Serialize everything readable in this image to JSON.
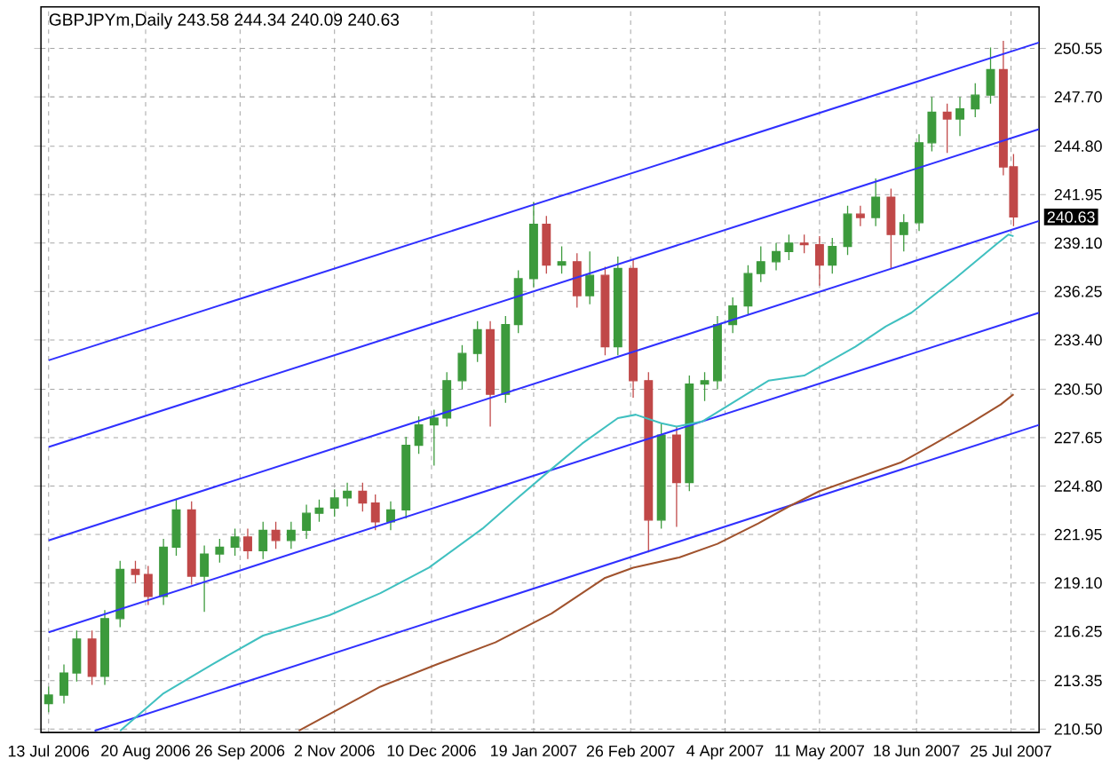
{
  "chart_data": {
    "type": "candlestick",
    "title": "GBPJPYm,Daily  243.58 244.34 240.09 240.63",
    "xlim": [
      "2006-07-10",
      "2007-08-05"
    ],
    "ylim": [
      210.3,
      253.0
    ],
    "xticks": [
      {
        "value": "2006-07-13",
        "label": "13 Jul 2006"
      },
      {
        "value": "2006-08-20",
        "label": "20 Aug 2006"
      },
      {
        "value": "2006-09-26",
        "label": "26 Sep 2006"
      },
      {
        "value": "2006-11-02",
        "label": "2 Nov 2006"
      },
      {
        "value": "2006-12-10",
        "label": "10 Dec 2006"
      },
      {
        "value": "2007-01-19",
        "label": "19 Jan 2007"
      },
      {
        "value": "2007-02-26",
        "label": "26 Feb 2007"
      },
      {
        "value": "2007-04-04",
        "label": "4 Apr 2007"
      },
      {
        "value": "2007-05-11",
        "label": "11 May 2007"
      },
      {
        "value": "2007-06-18",
        "label": "18 Jun 2007"
      },
      {
        "value": "2007-07-25",
        "label": "25 Jul 2007"
      }
    ],
    "yticks": [
      250.55,
      {
        "value": 247.7,
        "label": "247.70"
      },
      {
        "value": 244.8,
        "label": "244.80"
      },
      241.95,
      {
        "value": 239.1,
        "label": "239.10"
      },
      236.25,
      {
        "value": 233.4,
        "label": "233.40"
      },
      {
        "value": 230.5,
        "label": "230.50"
      },
      227.65,
      {
        "value": 224.8,
        "label": "224.80"
      },
      221.95,
      {
        "value": 219.1,
        "label": "219.10"
      },
      216.25,
      213.35,
      {
        "value": 210.5,
        "label": "210.50"
      }
    ],
    "grid": true,
    "annotations": [
      {
        "text": "240.63",
        "y": 240.63
      }
    ],
    "series": [
      {
        "x": [
          "2006-07-13",
          "2006-07-19",
          "2006-07-24",
          "2006-07-30",
          "2006-08-04",
          "2006-08-10",
          "2006-08-16",
          "2006-08-21",
          "2006-08-27",
          "2006-09-01",
          "2006-09-07",
          "2006-09-12",
          "2006-09-18",
          "2006-09-24",
          "2006-09-29",
          "2006-10-05",
          "2006-10-10",
          "2006-10-16",
          "2006-10-22",
          "2006-10-27",
          "2006-11-02",
          "2006-11-07",
          "2006-11-13",
          "2006-11-18",
          "2006-11-24",
          "2006-11-30",
          "2006-12-05",
          "2006-12-11",
          "2006-12-16",
          "2006-12-22",
          "2006-12-28",
          "2007-01-02",
          "2007-01-08",
          "2007-01-13",
          "2007-01-19",
          "2007-01-24",
          "2007-01-30",
          "2007-02-05",
          "2007-02-10",
          "2007-02-16",
          "2007-02-21",
          "2007-02-27",
          "2007-03-05",
          "2007-03-10",
          "2007-03-16",
          "2007-03-21",
          "2007-03-27",
          "2007-04-01",
          "2007-04-07",
          "2007-04-13",
          "2007-04-18",
          "2007-04-24",
          "2007-04-29",
          "2007-05-05",
          "2007-05-11",
          "2007-05-16",
          "2007-05-22",
          "2007-05-27",
          "2007-06-02",
          "2007-06-08",
          "2007-06-13",
          "2007-06-19",
          "2007-06-24",
          "2007-06-30",
          "2007-07-05",
          "2007-07-11",
          "2007-07-17",
          "2007-07-22",
          "2007-07-26"
        ],
        "ohlc": [
          [
            212.0,
            213.0,
            211.5,
            212.5
          ],
          [
            212.5,
            214.3,
            212.0,
            213.8
          ],
          [
            213.8,
            216.3,
            213.3,
            215.8
          ],
          [
            215.8,
            216.3,
            213.1,
            213.6
          ],
          [
            213.6,
            217.5,
            213.1,
            217.0
          ],
          [
            217.0,
            220.4,
            216.5,
            219.9
          ],
          [
            219.9,
            220.4,
            219.1,
            219.6
          ],
          [
            219.6,
            220.1,
            217.8,
            218.3
          ],
          [
            218.3,
            221.7,
            217.8,
            221.2
          ],
          [
            221.2,
            224.0,
            220.7,
            223.4
          ],
          [
            223.4,
            223.9,
            219.0,
            219.5
          ],
          [
            219.5,
            221.3,
            217.4,
            220.8
          ],
          [
            220.8,
            221.7,
            220.3,
            221.2
          ],
          [
            221.2,
            222.3,
            220.7,
            221.8
          ],
          [
            221.8,
            222.3,
            220.5,
            221.0
          ],
          [
            221.0,
            222.7,
            220.5,
            222.2
          ],
          [
            222.2,
            222.7,
            221.1,
            221.6
          ],
          [
            221.6,
            222.7,
            221.1,
            222.2
          ],
          [
            222.2,
            223.7,
            221.7,
            223.2
          ],
          [
            223.2,
            224.0,
            222.7,
            223.5
          ],
          [
            223.5,
            224.6,
            223.0,
            224.1
          ],
          [
            224.1,
            225.0,
            223.6,
            224.5
          ],
          [
            224.5,
            225.0,
            223.3,
            223.8
          ],
          [
            223.8,
            224.3,
            222.2,
            222.7
          ],
          [
            222.7,
            223.9,
            222.2,
            223.4
          ],
          [
            223.4,
            227.7,
            222.9,
            227.2
          ],
          [
            227.2,
            228.9,
            226.7,
            228.4
          ],
          [
            228.4,
            229.3,
            226.0,
            228.8
          ],
          [
            228.8,
            231.5,
            228.3,
            231.0
          ],
          [
            231.0,
            233.1,
            230.5,
            232.6
          ],
          [
            232.6,
            234.5,
            232.1,
            234.0
          ],
          [
            234.0,
            234.5,
            228.3,
            230.2
          ],
          [
            230.2,
            234.8,
            229.7,
            234.3
          ],
          [
            234.3,
            237.5,
            233.8,
            237.0
          ],
          [
            237.0,
            241.5,
            236.5,
            240.2
          ],
          [
            240.2,
            240.7,
            237.3,
            237.8
          ],
          [
            237.8,
            238.9,
            237.3,
            238.0
          ],
          [
            238.0,
            238.5,
            235.3,
            236.0
          ],
          [
            236.0,
            238.6,
            235.5,
            237.2
          ],
          [
            237.2,
            237.7,
            232.5,
            233.0
          ],
          [
            233.0,
            238.3,
            232.5,
            237.6
          ],
          [
            237.6,
            238.1,
            230.0,
            231.0
          ],
          [
            231.0,
            231.5,
            220.9,
            222.8
          ],
          [
            222.8,
            228.5,
            222.3,
            227.8
          ],
          [
            227.8,
            228.3,
            222.4,
            225.0
          ],
          [
            225.0,
            231.3,
            224.5,
            230.8
          ],
          [
            230.8,
            231.5,
            229.8,
            231.0
          ],
          [
            231.0,
            234.8,
            230.5,
            234.3
          ],
          [
            234.3,
            235.9,
            233.8,
            235.4
          ],
          [
            235.4,
            237.8,
            234.9,
            237.3
          ],
          [
            237.3,
            238.9,
            236.8,
            238.0
          ],
          [
            238.0,
            239.1,
            237.5,
            238.6
          ],
          [
            238.6,
            239.6,
            238.1,
            239.1
          ],
          [
            239.1,
            239.6,
            238.5,
            239.0
          ],
          [
            239.0,
            239.5,
            236.6,
            237.8
          ],
          [
            237.8,
            239.4,
            237.3,
            238.9
          ],
          [
            238.9,
            241.3,
            238.4,
            240.8
          ],
          [
            240.8,
            241.3,
            240.1,
            240.6
          ],
          [
            240.6,
            242.9,
            240.1,
            241.8
          ],
          [
            241.8,
            242.3,
            237.6,
            239.6
          ],
          [
            239.6,
            240.8,
            238.6,
            240.3
          ],
          [
            240.3,
            245.5,
            239.8,
            245.0
          ],
          [
            245.0,
            247.7,
            244.5,
            246.8
          ],
          [
            246.8,
            247.3,
            244.4,
            246.4
          ],
          [
            246.4,
            247.7,
            245.4,
            247.0
          ],
          [
            247.0,
            248.5,
            246.5,
            247.8
          ],
          [
            247.8,
            250.6,
            247.3,
            249.3
          ],
          [
            249.3,
            251.0,
            243.08,
            243.58
          ],
          [
            243.58,
            244.34,
            240.09,
            240.63
          ]
        ],
        "colors": [
          "#3c9a3c",
          "#3c9a3c",
          "#3c9a3c",
          "#c04848",
          "#3c9a3c",
          "#3c9a3c",
          "#c04848",
          "#c04848",
          "#3c9a3c",
          "#3c9a3c",
          "#c04848",
          "#3c9a3c",
          "#3c9a3c",
          "#3c9a3c",
          "#c04848",
          "#3c9a3c",
          "#c04848",
          "#3c9a3c",
          "#3c9a3c",
          "#3c9a3c",
          "#3c9a3c",
          "#3c9a3c",
          "#c04848",
          "#c04848",
          "#3c9a3c",
          "#3c9a3c",
          "#3c9a3c",
          "#3c9a3c",
          "#3c9a3c",
          "#3c9a3c",
          "#3c9a3c",
          "#c04848",
          "#3c9a3c",
          "#3c9a3c",
          "#3c9a3c",
          "#c04848",
          "#3c9a3c",
          "#c04848",
          "#3c9a3c",
          "#c04848",
          "#3c9a3c",
          "#c04848",
          "#c04848",
          "#3c9a3c",
          "#c04848",
          "#3c9a3c",
          "#3c9a3c",
          "#3c9a3c",
          "#3c9a3c",
          "#3c9a3c",
          "#3c9a3c",
          "#3c9a3c",
          "#3c9a3c",
          "#c04848",
          "#c04848",
          "#3c9a3c",
          "#3c9a3c",
          "#c04848",
          "#3c9a3c",
          "#c04848",
          "#3c9a3c",
          "#3c9a3c",
          "#3c9a3c",
          "#c04848",
          "#3c9a3c",
          "#3c9a3c",
          "#3c9a3c",
          "#c04848",
          "#c04848"
        ]
      },
      {
        "type": "line",
        "color": "#3030ff",
        "x": [
          "2006-07-13",
          "2007-08-05"
        ],
        "values": [
          232.2,
          250.9
        ]
      },
      {
        "type": "line",
        "color": "#3030ff",
        "x": [
          "2006-07-13",
          "2007-08-05"
        ],
        "values": [
          227.1,
          245.8
        ]
      },
      {
        "type": "line",
        "color": "#3030ff",
        "x": [
          "2006-07-13",
          "2007-08-05"
        ],
        "values": [
          221.6,
          240.4
        ]
      },
      {
        "type": "line",
        "color": "#3030ff",
        "x": [
          "2006-07-13",
          "2007-08-05"
        ],
        "values": [
          216.2,
          235.0
        ]
      },
      {
        "type": "line",
        "color": "#3030ff",
        "x": [
          "2006-07-31",
          "2007-08-05"
        ],
        "values": [
          210.4,
          228.4
        ]
      },
      {
        "type": "line",
        "color": "#40c0c0",
        "x": [
          "2006-08-10",
          "2006-08-27",
          "2006-09-15",
          "2006-10-05",
          "2006-10-31",
          "2006-11-20",
          "2006-12-09",
          "2006-12-30",
          "2007-01-12",
          "2007-01-26",
          "2007-02-07",
          "2007-02-21",
          "2007-02-28",
          "2007-03-10",
          "2007-03-16",
          "2007-03-26",
          "2007-04-08",
          "2007-04-21",
          "2007-05-05",
          "2007-05-25",
          "2007-06-06",
          "2007-06-16",
          "2007-07-03",
          "2007-07-19",
          "2007-07-24",
          "2007-07-26"
        ],
        "values": [
          210.4,
          212.6,
          214.3,
          216.0,
          217.2,
          218.5,
          220.0,
          222.3,
          224.0,
          225.8,
          227.3,
          228.8,
          229.0,
          228.5,
          228.3,
          228.6,
          229.8,
          231.0,
          231.3,
          233.0,
          234.2,
          235.0,
          237.0,
          239.0,
          239.6,
          239.5
        ]
      },
      {
        "type": "line",
        "color": "#a0522d",
        "x": [
          "2006-10-19",
          "2006-11-20",
          "2006-12-12",
          "2007-01-04",
          "2007-01-26",
          "2007-02-16",
          "2007-02-27",
          "2007-03-17",
          "2007-04-01",
          "2007-04-17",
          "2007-04-29",
          "2007-05-11",
          "2007-05-26",
          "2007-06-12",
          "2007-06-24",
          "2007-07-08",
          "2007-07-21",
          "2007-07-26"
        ],
        "values": [
          210.4,
          213.0,
          214.3,
          215.6,
          217.3,
          219.4,
          220.0,
          220.6,
          221.4,
          222.6,
          223.6,
          224.5,
          225.3,
          226.2,
          227.2,
          228.4,
          229.6,
          230.2
        ]
      }
    ]
  }
}
